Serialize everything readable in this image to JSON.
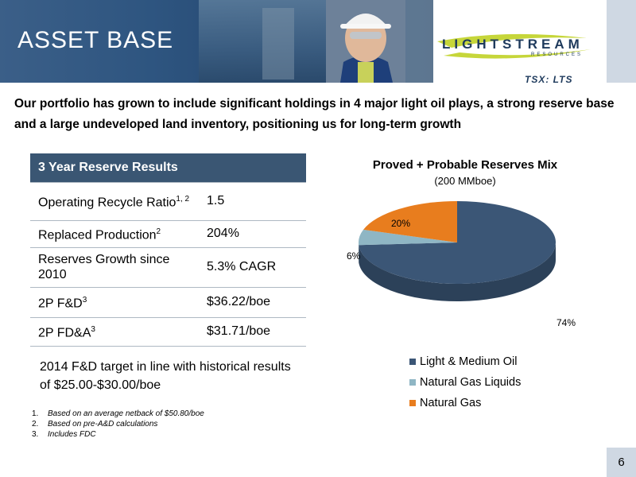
{
  "header": {
    "title": "ASSET BASE",
    "logo_name": "LIGHTSTREAM",
    "logo_sub": "RESOURCES",
    "ticker": "TSX: LTS"
  },
  "intro": "Our portfolio has grown to include significant holdings in 4 major light oil plays, a strong reserve base and a large undeveloped land inventory, positioning us for long-term growth",
  "table": {
    "header": "3 Year Reserve Results",
    "rows": [
      {
        "label": "Operating Recycle Ratio",
        "sup": "1, 2",
        "value": "1.5"
      },
      {
        "label": "Replaced Production",
        "sup": "2",
        "value": "204%"
      },
      {
        "label": "Reserves Growth since 2010",
        "sup": "",
        "value": "5.3% CAGR"
      },
      {
        "label": "2P F&D",
        "sup": "3",
        "value": "$36.22/boe"
      },
      {
        "label": "2P FD&A",
        "sup": "3",
        "value": "$31.71/boe"
      }
    ]
  },
  "note": "2014 F&D target in line with historical results of $25.00-$30.00/boe",
  "footnotes": [
    {
      "num": "1.",
      "text": "Based on an average netback of $50.80/boe"
    },
    {
      "num": "2.",
      "text": "Based on pre-A&D calculations"
    },
    {
      "num": "3.",
      "text": "Includes FDC"
    }
  ],
  "chart_data": {
    "type": "pie",
    "title": "Proved + Probable Reserves Mix",
    "subtitle": "(200 MMboe)",
    "categories": [
      "Light & Medium Oil",
      "Natural Gas Liquids",
      "Natural Gas"
    ],
    "values": [
      74,
      6,
      20
    ],
    "labels": [
      "74%",
      "6%",
      "20%"
    ],
    "colors": [
      "#3b5676",
      "#8fb6c4",
      "#e87d1e"
    ],
    "legend_position": "bottom"
  },
  "page_number": "6"
}
